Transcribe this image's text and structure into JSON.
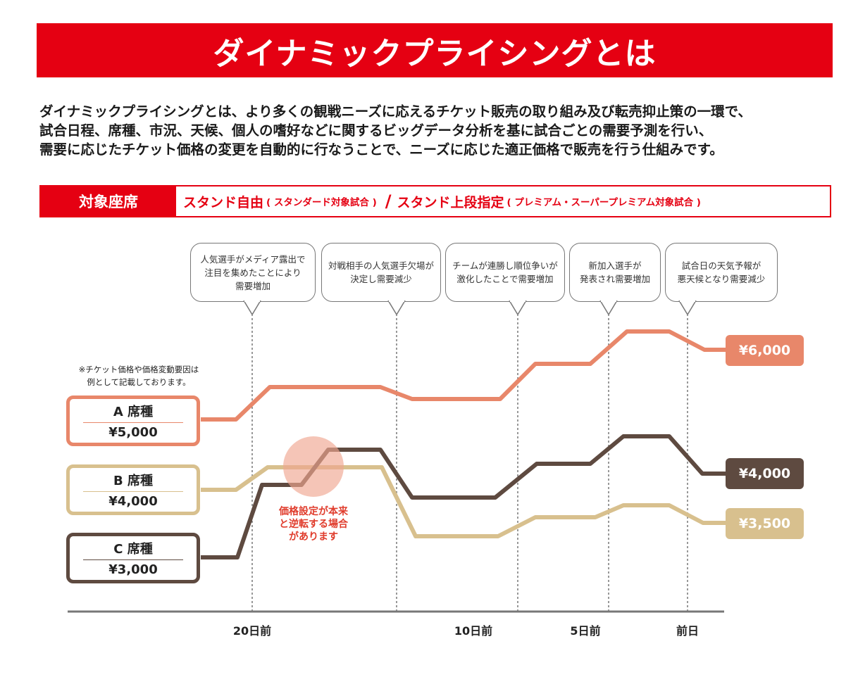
{
  "title": "ダイナミックプライシングとは",
  "intro_lines": [
    "ダイナミックプライシングとは、より多くの観戦ニーズに応えるチケット販売の取り組み及び転売抑止策の一環で、",
    "試合日程、席種、市況、天候、個人の嗜好などに関するビッグデータ分析を基に試合ごとの需要予測を行い、",
    "需要に応じたチケット価格の変更を自動的に行なうことで、ニーズに応じた適正価格で販売を行う仕組みです。"
  ],
  "target": {
    "label": "対象座席",
    "seat1": "スタンド自由",
    "seat1_sub": "( スタンダード対象試合 )",
    "slash": "/",
    "seat2": "スタンド上段指定",
    "seat2_sub": "( プレミアム・スーパープレミアム対象試合 )"
  },
  "bubbles": [
    "人気選手がメディア露出で\n注目を集めたことにより\n需要増加",
    "対戦相手の人気選手欠場が\n決定し需要減少",
    "チームが連勝し順位争いが\n激化したことで需要増加",
    "新加入選手が\n発表され需要増加",
    "試合日の天気予報が\n悪天候となり需要減少"
  ],
  "note": "※チケット価格や価格変動要因は\n例として記載しております。",
  "seats": [
    {
      "name": "A 席種",
      "start_price": "¥5,000",
      "end_price": "¥6,000",
      "color": "#e8876a"
    },
    {
      "name": "B 席種",
      "start_price": "¥4,000",
      "end_price": "¥3,500",
      "color": "#d8c08e"
    },
    {
      "name": "C 席種",
      "start_price": "¥3,000",
      "end_price": "¥4,000",
      "color": "#5e4a40"
    }
  ],
  "reversal_note": "価格設定が本来\nと逆転する場合\nがあります",
  "day_labels": [
    "20日前",
    "10日前",
    "5日前",
    "前日"
  ],
  "colors": {
    "brand_red": "#e50012",
    "highlight": "#f0a690"
  }
}
